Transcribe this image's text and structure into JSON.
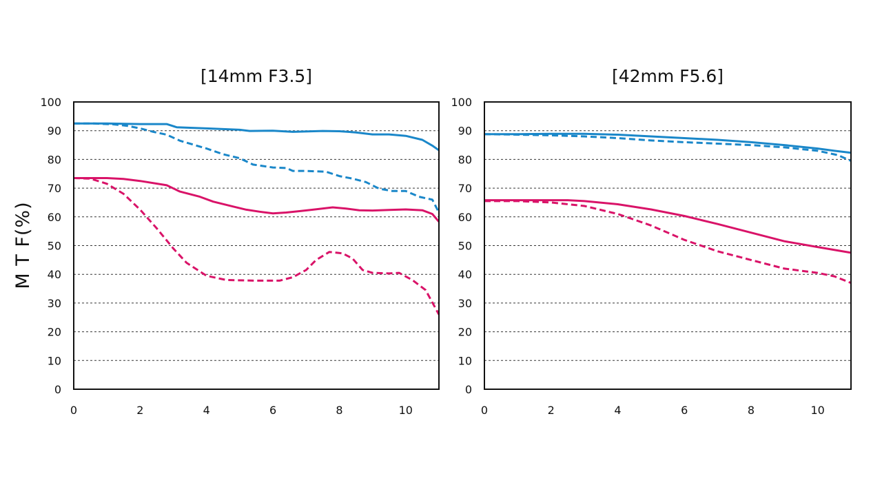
{
  "colors": {
    "blue": "#1a87c9",
    "magenta": "#d91368",
    "grid": "#333333",
    "axis": "#111111"
  },
  "ylabel": "M T F(%)",
  "chart_data": [
    {
      "type": "line",
      "title": "[14mm F3.5]",
      "xlabel": "",
      "ylabel": "M T F(%)",
      "xlim": [
        0,
        11
      ],
      "ylim": [
        0,
        100
      ],
      "xticks": [
        "0",
        "2",
        "4",
        "6",
        "8",
        "10"
      ],
      "yticks": [
        "100",
        "90",
        "80",
        "70",
        "60",
        "50",
        "40",
        "30",
        "20",
        "10",
        "0"
      ],
      "grid": "horizontal dashed",
      "series": [
        {
          "color": "#1a87c9",
          "dash": false,
          "points": [
            [
              0,
              92.5
            ],
            [
              1,
              92.5
            ],
            [
              2,
              92.3
            ],
            [
              2.8,
              92.3
            ],
            [
              3.1,
              91.2
            ],
            [
              4,
              90.8
            ],
            [
              5,
              90.3
            ],
            [
              5.3,
              89.9
            ],
            [
              6,
              90.0
            ],
            [
              6.6,
              89.6
            ],
            [
              7.5,
              89.9
            ],
            [
              8,
              89.8
            ],
            [
              8.5,
              89.4
            ],
            [
              9,
              88.7
            ],
            [
              9.5,
              88.7
            ],
            [
              10,
              88.2
            ],
            [
              10.5,
              86.8
            ],
            [
              10.8,
              84.8
            ],
            [
              11,
              83.2
            ]
          ]
        },
        {
          "color": "#1a87c9",
          "dash": true,
          "points": [
            [
              0,
              92.5
            ],
            [
              0.6,
              92.5
            ],
            [
              1.2,
              92.2
            ],
            [
              1.6,
              91.7
            ],
            [
              2,
              90.8
            ],
            [
              2.4,
              89.6
            ],
            [
              2.8,
              88.6
            ],
            [
              3.2,
              86.5
            ],
            [
              4,
              83.8
            ],
            [
              4.5,
              81.8
            ],
            [
              5,
              80.4
            ],
            [
              5.4,
              78.2
            ],
            [
              6,
              77.2
            ],
            [
              6.4,
              77.0
            ],
            [
              6.6,
              76.0
            ],
            [
              7,
              76.0
            ],
            [
              7.6,
              75.7
            ],
            [
              8,
              74.2
            ],
            [
              8.4,
              73.3
            ],
            [
              8.8,
              72.1
            ],
            [
              9.2,
              69.8
            ],
            [
              9.6,
              69.0
            ],
            [
              10,
              69.0
            ],
            [
              10.4,
              67.0
            ],
            [
              10.8,
              66.0
            ],
            [
              11,
              61.5
            ]
          ]
        },
        {
          "color": "#d91368",
          "dash": false,
          "points": [
            [
              0,
              73.5
            ],
            [
              1,
              73.5
            ],
            [
              1.5,
              73.2
            ],
            [
              2,
              72.5
            ],
            [
              2.8,
              71.0
            ],
            [
              3.2,
              68.8
            ],
            [
              3.8,
              67.0
            ],
            [
              4.2,
              65.3
            ],
            [
              4.8,
              63.6
            ],
            [
              5.2,
              62.5
            ],
            [
              5.6,
              61.8
            ],
            [
              6,
              61.2
            ],
            [
              6.4,
              61.5
            ],
            [
              6.8,
              62.0
            ],
            [
              7.2,
              62.5
            ],
            [
              7.8,
              63.3
            ],
            [
              8.2,
              62.9
            ],
            [
              8.6,
              62.3
            ],
            [
              9,
              62.2
            ],
            [
              9.5,
              62.4
            ],
            [
              10,
              62.6
            ],
            [
              10.5,
              62.3
            ],
            [
              10.8,
              61.0
            ],
            [
              11,
              58.3
            ]
          ]
        },
        {
          "color": "#d91368",
          "dash": true,
          "points": [
            [
              0,
              73.5
            ],
            [
              0.5,
              73.3
            ],
            [
              1,
              71.5
            ],
            [
              1.5,
              68.0
            ],
            [
              2,
              62.5
            ],
            [
              2.5,
              56.0
            ],
            [
              3,
              49.0
            ],
            [
              3.4,
              44.0
            ],
            [
              4,
              39.5
            ],
            [
              4.6,
              38.0
            ],
            [
              5.5,
              37.8
            ],
            [
              6.2,
              37.8
            ],
            [
              6.6,
              39.0
            ],
            [
              7,
              41.5
            ],
            [
              7.3,
              45.0
            ],
            [
              7.7,
              47.8
            ],
            [
              8.1,
              47.3
            ],
            [
              8.4,
              45.5
            ],
            [
              8.7,
              41.5
            ],
            [
              9,
              40.5
            ],
            [
              9.5,
              40.3
            ],
            [
              9.8,
              40.5
            ],
            [
              10.2,
              38.0
            ],
            [
              10.6,
              34.5
            ],
            [
              11,
              26.0
            ]
          ]
        }
      ]
    },
    {
      "type": "line",
      "title": "[42mm F5.6]",
      "xlabel": "",
      "ylabel": "",
      "xlim": [
        0,
        11
      ],
      "ylim": [
        0,
        100
      ],
      "xticks": [
        "0",
        "2",
        "4",
        "6",
        "8",
        "10"
      ],
      "yticks": [
        "100",
        "90",
        "80",
        "70",
        "60",
        "50",
        "40",
        "30",
        "20",
        "10",
        "0"
      ],
      "grid": "horizontal dashed",
      "series": [
        {
          "color": "#1a87c9",
          "dash": false,
          "points": [
            [
              0,
              88.8
            ],
            [
              1,
              88.8
            ],
            [
              2,
              88.9
            ],
            [
              3,
              88.9
            ],
            [
              4,
              88.6
            ],
            [
              5,
              88.0
            ],
            [
              6,
              87.4
            ],
            [
              7,
              86.8
            ],
            [
              8,
              86.0
            ],
            [
              9,
              85.0
            ],
            [
              10,
              83.8
            ],
            [
              10.5,
              83.0
            ],
            [
              11,
              82.3
            ]
          ]
        },
        {
          "color": "#1a87c9",
          "dash": true,
          "points": [
            [
              0,
              88.8
            ],
            [
              1,
              88.6
            ],
            [
              2,
              88.4
            ],
            [
              3,
              88.0
            ],
            [
              4,
              87.4
            ],
            [
              5,
              86.6
            ],
            [
              6,
              86.0
            ],
            [
              7,
              85.5
            ],
            [
              8,
              85.0
            ],
            [
              9,
              84.2
            ],
            [
              10,
              83.0
            ],
            [
              10.6,
              81.5
            ],
            [
              11,
              79.5
            ]
          ]
        },
        {
          "color": "#d91368",
          "dash": false,
          "points": [
            [
              0,
              65.8
            ],
            [
              1,
              65.8
            ],
            [
              2,
              65.8
            ],
            [
              2.5,
              65.8
            ],
            [
              3,
              65.5
            ],
            [
              4,
              64.4
            ],
            [
              5,
              62.6
            ],
            [
              6,
              60.3
            ],
            [
              7,
              57.5
            ],
            [
              8,
              54.5
            ],
            [
              9,
              51.5
            ],
            [
              10,
              49.5
            ],
            [
              11,
              47.5
            ]
          ]
        },
        {
          "color": "#d91368",
          "dash": true,
          "points": [
            [
              0,
              65.5
            ],
            [
              1,
              65.5
            ],
            [
              2,
              65.0
            ],
            [
              3,
              63.8
            ],
            [
              4,
              61.0
            ],
            [
              5,
              57.0
            ],
            [
              6,
              52.0
            ],
            [
              7,
              48.0
            ],
            [
              8,
              45.0
            ],
            [
              9,
              42.0
            ],
            [
              10,
              40.5
            ],
            [
              10.5,
              39.3
            ],
            [
              11,
              37.0
            ]
          ]
        }
      ]
    }
  ]
}
